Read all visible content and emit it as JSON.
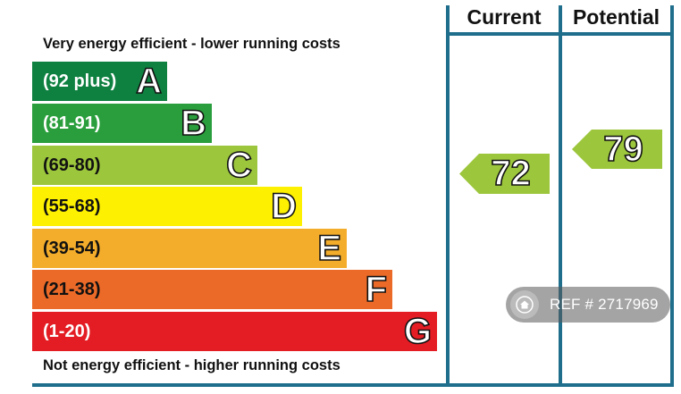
{
  "chart_data": {
    "type": "epc-rating",
    "columns": [
      "Current",
      "Potential"
    ],
    "top_caption": "Very energy efficient - lower running costs",
    "bottom_caption": "Not energy efficient - higher running costs",
    "bands": [
      {
        "letter": "A",
        "range": "(92 plus)",
        "color": "#0e8040",
        "text_color": "#ffffff"
      },
      {
        "letter": "B",
        "range": "(81-91)",
        "color": "#2a9e3c",
        "text_color": "#ffffff"
      },
      {
        "letter": "C",
        "range": "(69-80)",
        "color": "#9cc63c",
        "text_color": "#111111"
      },
      {
        "letter": "D",
        "range": "(55-68)",
        "color": "#fdf000",
        "text_color": "#111111"
      },
      {
        "letter": "E",
        "range": "(39-54)",
        "color": "#f4ad2b",
        "text_color": "#111111"
      },
      {
        "letter": "F",
        "range": "(21-38)",
        "color": "#ec6a28",
        "text_color": "#111111"
      },
      {
        "letter": "G",
        "range": "(1-20)",
        "color": "#e31d23",
        "text_color": "#ffffff"
      }
    ],
    "current": {
      "value": 72,
      "band": "C",
      "color": "#9cc63c"
    },
    "potential": {
      "value": 79,
      "band": "C",
      "color": "#9cc63c"
    }
  },
  "watermark": {
    "text": "REF # 2717969",
    "icon": "house-icon"
  }
}
